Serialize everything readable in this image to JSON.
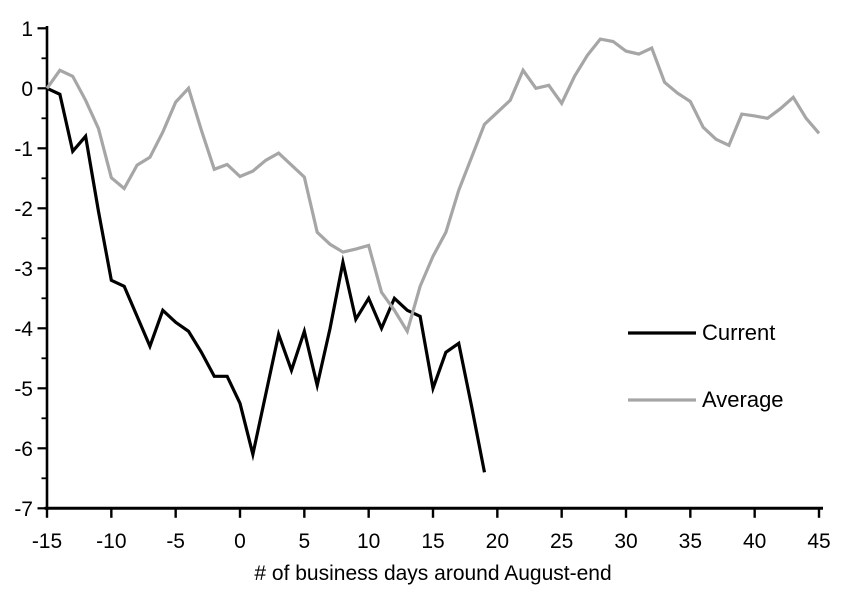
{
  "page": {
    "background": "#ffffff"
  },
  "chart_data": {
    "type": "line",
    "title": "",
    "xlabel": "# of business days around August-end",
    "ylabel": "",
    "xlim": [
      -15,
      45
    ],
    "ylim": [
      -7,
      1
    ],
    "grid": false,
    "legend_position": "right-middle",
    "x_ticks": [
      -15,
      -10,
      -5,
      0,
      5,
      10,
      15,
      20,
      25,
      30,
      35,
      40,
      45
    ],
    "y_ticks": [
      1,
      0,
      -1,
      -2,
      -3,
      -4,
      -5,
      -6,
      -7
    ],
    "y_minor_tick_step": 0.5,
    "axis_color": "#000000",
    "series": [
      {
        "name": "Current",
        "color": "#000000",
        "x_start": -15,
        "x_step": 1,
        "values": [
          0,
          -0.1,
          -1.05,
          -0.8,
          -2.05,
          -3.2,
          -3.3,
          -3.8,
          -4.3,
          -3.7,
          -3.9,
          -4.05,
          -4.4,
          -4.8,
          -4.8,
          -5.25,
          -6.1,
          -5.1,
          -4.1,
          -4.7,
          -4.05,
          -4.95,
          -4.0,
          -2.9,
          -3.85,
          -3.5,
          -4.0,
          -3.5,
          -3.7,
          -3.8,
          -5.0,
          -4.4,
          -4.25,
          -5.3,
          -6.4
        ]
      },
      {
        "name": "Average",
        "color": "#a6a6a6",
        "x_start": -15,
        "x_step": 1,
        "values": [
          0,
          0.3,
          0.2,
          -0.2,
          -0.67,
          -1.49,
          -1.67,
          -1.28,
          -1.15,
          -0.73,
          -0.23,
          0.0,
          -0.7,
          -1.35,
          -1.27,
          -1.47,
          -1.38,
          -1.2,
          -1.08,
          -1.28,
          -1.48,
          -2.4,
          -2.6,
          -2.73,
          -2.68,
          -2.62,
          -3.4,
          -3.7,
          -4.05,
          -3.3,
          -2.8,
          -2.4,
          -1.7,
          -1.15,
          -0.6,
          -0.4,
          -0.2,
          0.3,
          0.0,
          0.05,
          -0.25,
          0.2,
          0.55,
          0.82,
          0.78,
          0.62,
          0.57,
          0.67,
          0.1,
          -0.08,
          -0.22,
          -0.65,
          -0.85,
          -0.95,
          -0.43,
          -0.46,
          -0.5,
          -0.34,
          -0.15,
          -0.5,
          -0.75
        ]
      }
    ]
  }
}
